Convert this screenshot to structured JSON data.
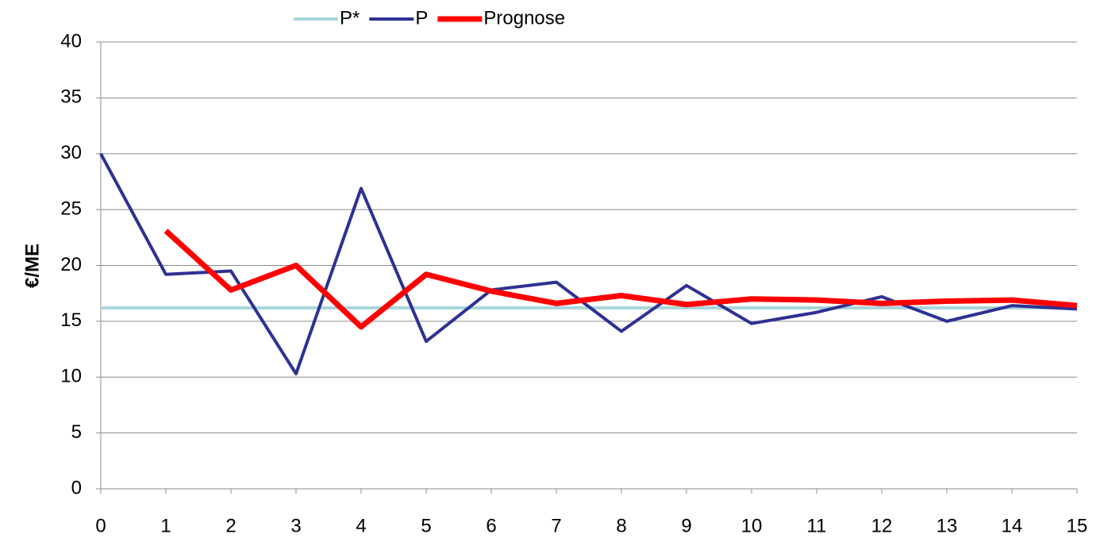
{
  "chart_data": {
    "type": "line",
    "y_label": "€/ME",
    "x": [
      0,
      1,
      2,
      3,
      4,
      5,
      6,
      7,
      8,
      9,
      10,
      11,
      12,
      13,
      14,
      15
    ],
    "series": [
      {
        "name": "P*",
        "color": "#a9d6da",
        "width": 4,
        "values": [
          16.2,
          16.2,
          16.2,
          16.2,
          16.2,
          16.2,
          16.2,
          16.2,
          16.2,
          16.2,
          16.2,
          16.2,
          16.2,
          16.2,
          16.2,
          16.2
        ]
      },
      {
        "name": "P",
        "color": "#2e3192",
        "width": 4,
        "values": [
          30,
          19.2,
          19.5,
          10.3,
          26.9,
          13.2,
          17.8,
          18.5,
          14.1,
          18.2,
          14.8,
          15.8,
          17.2,
          15.0,
          16.4,
          16.1
        ]
      },
      {
        "name": "Prognose",
        "color": "#ff0000",
        "width": 7,
        "values": [
          null,
          23.1,
          17.8,
          20.0,
          14.5,
          19.2,
          17.7,
          16.6,
          17.3,
          16.5,
          17.0,
          16.9,
          16.6,
          16.8,
          16.9,
          16.4
        ]
      }
    ],
    "xlim": [
      0,
      15
    ],
    "xticks": [
      0,
      1,
      2,
      3,
      4,
      5,
      6,
      7,
      8,
      9,
      10,
      11,
      12,
      13,
      14,
      15
    ],
    "ylim": [
      0,
      40
    ],
    "yticks": [
      0,
      5,
      10,
      15,
      20,
      25,
      30,
      35,
      40
    ],
    "grid": true,
    "legend": "top"
  }
}
